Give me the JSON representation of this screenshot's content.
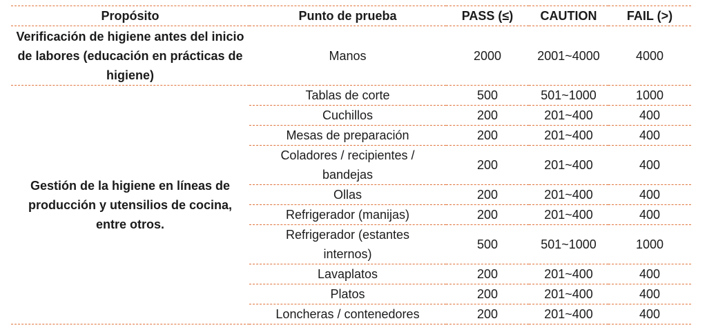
{
  "columns": [
    "Propósito",
    "Punto de prueba",
    "PASS (≤)",
    "CAUTION",
    "FAIL (>)"
  ],
  "groups": [
    {
      "purpose": "Verificación de higiene antes del inicio de labores (educación en prácticas de higiene)",
      "rows": [
        {
          "point": "Manos",
          "pass": "2000",
          "caution": "2001~4000",
          "fail": "4000"
        }
      ]
    },
    {
      "purpose": "Gestión de la higiene en líneas de producción y utensilios de cocina, entre otros.",
      "rows": [
        {
          "point": "Tablas de corte",
          "pass": "500",
          "caution": "501~1000",
          "fail": "1000"
        },
        {
          "point": "Cuchillos",
          "pass": "200",
          "caution": "201~400",
          "fail": "400"
        },
        {
          "point": "Mesas de preparación",
          "pass": "200",
          "caution": "201~400",
          "fail": "400"
        },
        {
          "point": "Coladores / recipientes / bandejas",
          "pass": "200",
          "caution": "201~400",
          "fail": "400"
        },
        {
          "point": "Ollas",
          "pass": "200",
          "caution": "201~400",
          "fail": "400"
        },
        {
          "point": "Refrigerador (manijas)",
          "pass": "200",
          "caution": "201~400",
          "fail": "400"
        },
        {
          "point": "Refrigerador (estantes internos)",
          "pass": "500",
          "caution": "501~1000",
          "fail": "1000"
        },
        {
          "point": "Lavaplatos",
          "pass": "200",
          "caution": "201~400",
          "fail": "400"
        },
        {
          "point": "Platos",
          "pass": "200",
          "caution": "201~400",
          "fail": "400"
        },
        {
          "point": "Loncheras / contenedores",
          "pass": "200",
          "caution": "201~400",
          "fail": "400"
        }
      ]
    }
  ]
}
